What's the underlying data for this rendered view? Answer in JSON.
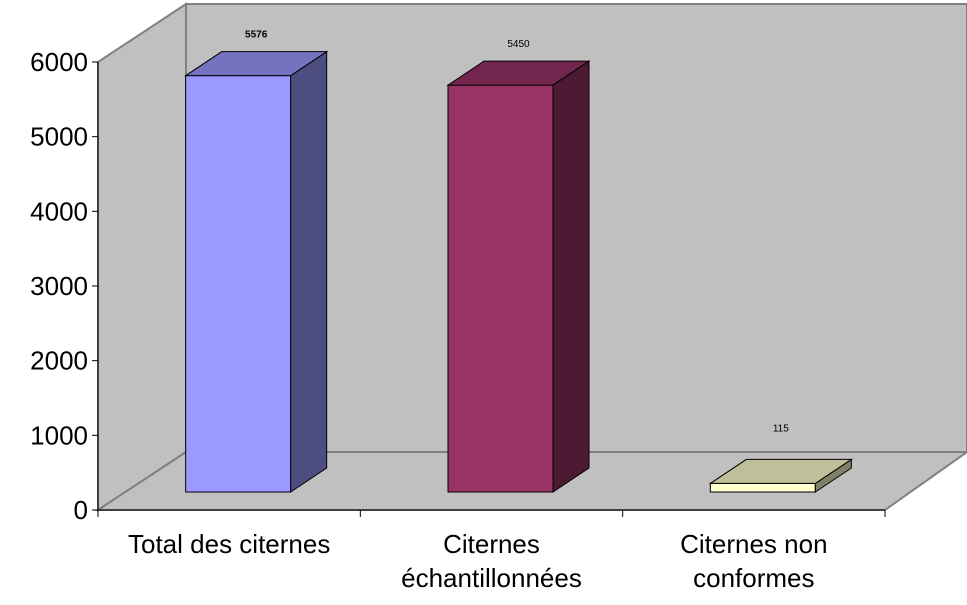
{
  "chart_data": {
    "type": "bar",
    "style": "3d-column",
    "categories": [
      "Total des citernes",
      "Citernes échantillonnées",
      "Citernes non conformes"
    ],
    "category_lines": [
      [
        "Total des citernes"
      ],
      [
        "Citernes",
        "échantillonnées"
      ],
      [
        "Citernes non",
        "conformes"
      ]
    ],
    "values": [
      5576,
      5450,
      115
    ],
    "data_labels": [
      "5576",
      "5450",
      "115"
    ],
    "colors": [
      "#9999ff",
      "#993366",
      "#ffffcc"
    ],
    "ylim": [
      0,
      6000
    ],
    "yticks": [
      0,
      1000,
      2000,
      3000,
      4000,
      5000,
      6000
    ],
    "ytick_labels": [
      "0",
      "1000",
      "2000",
      "3000",
      "4000",
      "5000",
      "6000"
    ],
    "grid": false,
    "legend": "none",
    "title": "",
    "xlabel": "",
    "ylabel": "",
    "wall_color": "#c0c0c0"
  }
}
